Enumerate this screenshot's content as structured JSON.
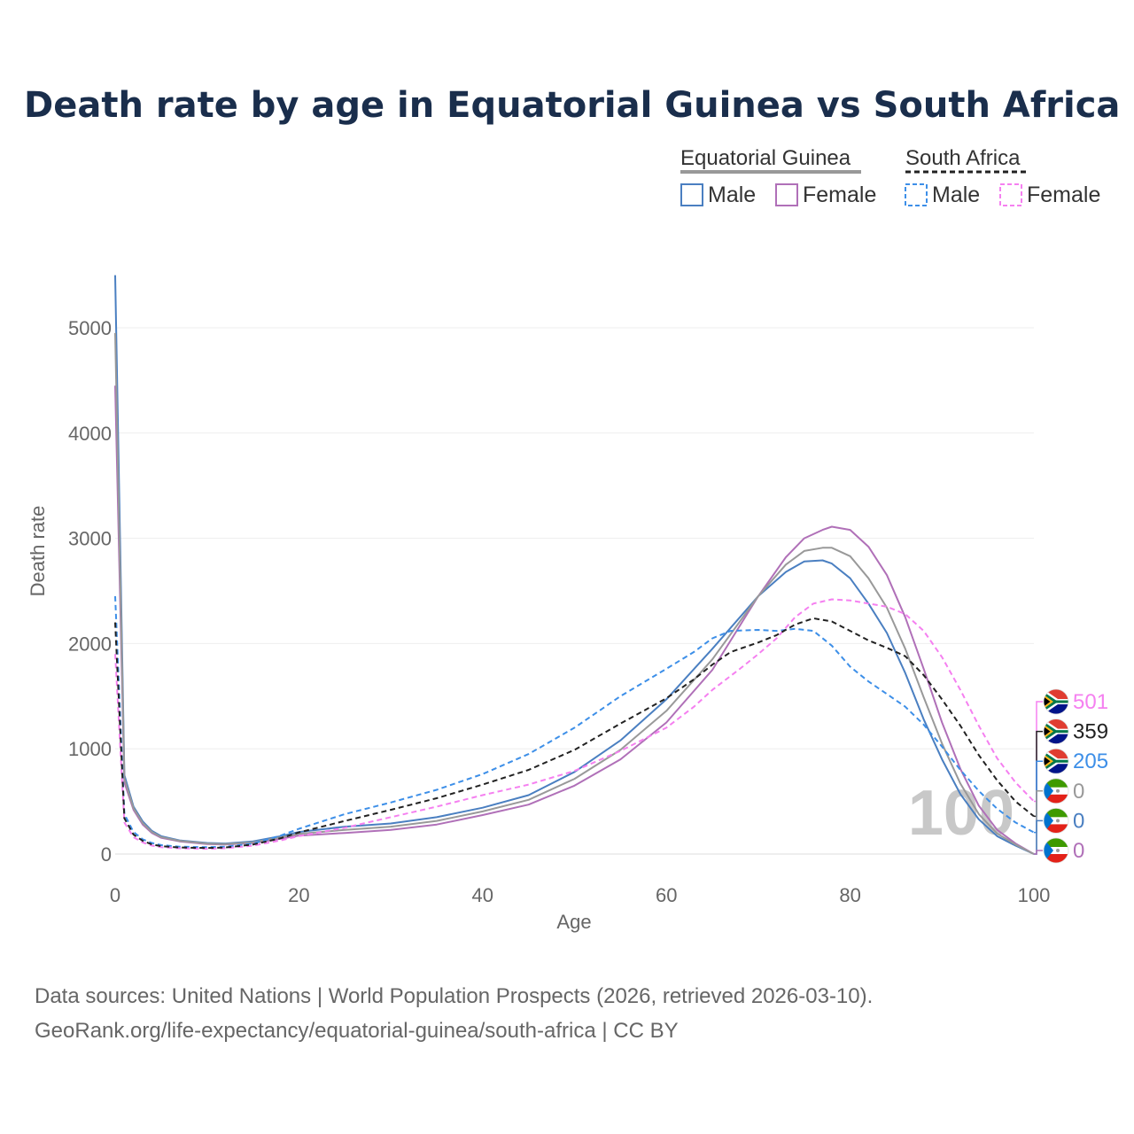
{
  "title": "Death rate by age in Equatorial Guinea vs South Africa",
  "legend": {
    "groups": [
      {
        "name": "Equatorial Guinea",
        "line_color": "#999999",
        "line_style": "solid",
        "items": [
          {
            "label": "Male",
            "color": "#4a7fc1"
          },
          {
            "label": "Female",
            "color": "#b070b8"
          }
        ]
      },
      {
        "name": "South Africa",
        "line_color": "#222222",
        "line_style": "dashed",
        "items": [
          {
            "label": "Male",
            "color": "#3d8fe8"
          },
          {
            "label": "Female",
            "color": "#f580f0"
          }
        ]
      }
    ]
  },
  "age_readout": "100",
  "source_lines": [
    "Data sources: United Nations | World Population Prospects (2026, retrieved 2026-03-10).",
    "GeoRank.org/life-expectancy/equatorial-guinea/south-africa | CC BY"
  ],
  "end_labels": [
    {
      "value": "501",
      "color": "#f580f0",
      "flag": "south-africa"
    },
    {
      "value": "359",
      "color": "#222222",
      "flag": "south-africa"
    },
    {
      "value": "205",
      "color": "#3d8fe8",
      "flag": "south-africa"
    },
    {
      "value": "0",
      "color": "#999999",
      "flag": "equatorial-guinea"
    },
    {
      "value": "0",
      "color": "#4a7fc1",
      "flag": "equatorial-guinea"
    },
    {
      "value": "0",
      "color": "#b070b8",
      "flag": "equatorial-guinea"
    }
  ],
  "chart_data": {
    "type": "line",
    "title": "Death rate by age in Equatorial Guinea vs South Africa",
    "xlabel": "Age",
    "ylabel": "Death rate",
    "xlim": [
      0,
      100
    ],
    "ylim": [
      0,
      5500
    ],
    "xticks": [
      0,
      20,
      40,
      60,
      80,
      100
    ],
    "yticks": [
      0,
      1000,
      2000,
      3000,
      4000,
      5000
    ],
    "grid": true,
    "series": [
      {
        "name": "Equatorial Guinea Male",
        "color": "#4a7fc1",
        "dash": false,
        "points": [
          [
            0,
            5500
          ],
          [
            1,
            750
          ],
          [
            2,
            450
          ],
          [
            3,
            310
          ],
          [
            4,
            220
          ],
          [
            5,
            170
          ],
          [
            7,
            130
          ],
          [
            10,
            105
          ],
          [
            12,
            100
          ],
          [
            15,
            120
          ],
          [
            18,
            170
          ],
          [
            20,
            210
          ],
          [
            25,
            260
          ],
          [
            30,
            290
          ],
          [
            35,
            350
          ],
          [
            40,
            440
          ],
          [
            45,
            560
          ],
          [
            50,
            780
          ],
          [
            55,
            1080
          ],
          [
            60,
            1470
          ],
          [
            65,
            1950
          ],
          [
            70,
            2450
          ],
          [
            73,
            2680
          ],
          [
            75,
            2780
          ],
          [
            77,
            2790
          ],
          [
            78,
            2760
          ],
          [
            80,
            2620
          ],
          [
            82,
            2380
          ],
          [
            84,
            2100
          ],
          [
            86,
            1720
          ],
          [
            88,
            1280
          ],
          [
            90,
            900
          ],
          [
            92,
            570
          ],
          [
            94,
            330
          ],
          [
            96,
            170
          ],
          [
            98,
            80
          ],
          [
            100,
            0
          ]
        ]
      },
      {
        "name": "Equatorial Guinea Female",
        "color": "#b070b8",
        "dash": false,
        "points": [
          [
            0,
            4450
          ],
          [
            1,
            680
          ],
          [
            2,
            420
          ],
          [
            3,
            280
          ],
          [
            4,
            200
          ],
          [
            5,
            155
          ],
          [
            7,
            120
          ],
          [
            10,
            95
          ],
          [
            12,
            90
          ],
          [
            15,
            105
          ],
          [
            18,
            145
          ],
          [
            20,
            175
          ],
          [
            25,
            200
          ],
          [
            30,
            230
          ],
          [
            35,
            280
          ],
          [
            40,
            370
          ],
          [
            45,
            470
          ],
          [
            50,
            650
          ],
          [
            55,
            900
          ],
          [
            60,
            1250
          ],
          [
            65,
            1750
          ],
          [
            70,
            2450
          ],
          [
            73,
            2820
          ],
          [
            75,
            3000
          ],
          [
            77,
            3080
          ],
          [
            78,
            3110
          ],
          [
            80,
            3080
          ],
          [
            82,
            2920
          ],
          [
            84,
            2650
          ],
          [
            86,
            2250
          ],
          [
            88,
            1760
          ],
          [
            90,
            1250
          ],
          [
            92,
            810
          ],
          [
            94,
            460
          ],
          [
            96,
            230
          ],
          [
            98,
            100
          ],
          [
            100,
            0
          ]
        ]
      },
      {
        "name": "Equatorial Guinea Total",
        "color": "#999999",
        "dash": false,
        "points": [
          [
            0,
            4950
          ],
          [
            1,
            715
          ],
          [
            2,
            435
          ],
          [
            3,
            295
          ],
          [
            4,
            210
          ],
          [
            5,
            162
          ],
          [
            7,
            125
          ],
          [
            10,
            100
          ],
          [
            12,
            95
          ],
          [
            15,
            112
          ],
          [
            18,
            158
          ],
          [
            20,
            192
          ],
          [
            25,
            230
          ],
          [
            30,
            260
          ],
          [
            35,
            315
          ],
          [
            40,
            405
          ],
          [
            45,
            515
          ],
          [
            50,
            715
          ],
          [
            55,
            990
          ],
          [
            60,
            1360
          ],
          [
            65,
            1850
          ],
          [
            70,
            2450
          ],
          [
            73,
            2750
          ],
          [
            75,
            2880
          ],
          [
            77,
            2910
          ],
          [
            78,
            2910
          ],
          [
            80,
            2830
          ],
          [
            82,
            2620
          ],
          [
            84,
            2340
          ],
          [
            86,
            1950
          ],
          [
            88,
            1490
          ],
          [
            90,
            1050
          ],
          [
            92,
            670
          ],
          [
            94,
            380
          ],
          [
            96,
            195
          ],
          [
            98,
            90
          ],
          [
            100,
            0
          ]
        ]
      },
      {
        "name": "South Africa Male",
        "color": "#3d8fe8",
        "dash": true,
        "points": [
          [
            0,
            2450
          ],
          [
            1,
            380
          ],
          [
            2,
            210
          ],
          [
            3,
            140
          ],
          [
            4,
            105
          ],
          [
            5,
            85
          ],
          [
            7,
            70
          ],
          [
            10,
            65
          ],
          [
            12,
            70
          ],
          [
            15,
            100
          ],
          [
            18,
            175
          ],
          [
            20,
            240
          ],
          [
            25,
            380
          ],
          [
            30,
            490
          ],
          [
            35,
            610
          ],
          [
            40,
            760
          ],
          [
            45,
            950
          ],
          [
            50,
            1200
          ],
          [
            55,
            1500
          ],
          [
            60,
            1760
          ],
          [
            63,
            1920
          ],
          [
            65,
            2050
          ],
          [
            67,
            2120
          ],
          [
            70,
            2130
          ],
          [
            72,
            2120
          ],
          [
            74,
            2140
          ],
          [
            76,
            2120
          ],
          [
            78,
            1980
          ],
          [
            80,
            1780
          ],
          [
            82,
            1640
          ],
          [
            84,
            1520
          ],
          [
            86,
            1400
          ],
          [
            88,
            1230
          ],
          [
            90,
            1020
          ],
          [
            92,
            800
          ],
          [
            94,
            600
          ],
          [
            96,
            430
          ],
          [
            98,
            300
          ],
          [
            100,
            205
          ]
        ]
      },
      {
        "name": "South Africa Female",
        "color": "#f580f0",
        "dash": true,
        "points": [
          [
            0,
            1900
          ],
          [
            1,
            300
          ],
          [
            2,
            160
          ],
          [
            3,
            110
          ],
          [
            4,
            80
          ],
          [
            5,
            65
          ],
          [
            7,
            55
          ],
          [
            10,
            50
          ],
          [
            12,
            55
          ],
          [
            15,
            80
          ],
          [
            18,
            130
          ],
          [
            20,
            170
          ],
          [
            25,
            250
          ],
          [
            30,
            350
          ],
          [
            35,
            450
          ],
          [
            40,
            560
          ],
          [
            45,
            660
          ],
          [
            50,
            790
          ],
          [
            55,
            980
          ],
          [
            60,
            1200
          ],
          [
            63,
            1400
          ],
          [
            65,
            1560
          ],
          [
            68,
            1760
          ],
          [
            70,
            1900
          ],
          [
            72,
            2050
          ],
          [
            74,
            2250
          ],
          [
            76,
            2380
          ],
          [
            78,
            2420
          ],
          [
            80,
            2410
          ],
          [
            82,
            2380
          ],
          [
            84,
            2350
          ],
          [
            86,
            2280
          ],
          [
            88,
            2120
          ],
          [
            90,
            1870
          ],
          [
            92,
            1560
          ],
          [
            94,
            1220
          ],
          [
            96,
            910
          ],
          [
            98,
            680
          ],
          [
            100,
            501
          ]
        ]
      },
      {
        "name": "South Africa Total",
        "color": "#222222",
        "dash": true,
        "points": [
          [
            0,
            2200
          ],
          [
            1,
            340
          ],
          [
            2,
            185
          ],
          [
            3,
            125
          ],
          [
            4,
            92
          ],
          [
            5,
            75
          ],
          [
            7,
            62
          ],
          [
            10,
            57
          ],
          [
            12,
            62
          ],
          [
            15,
            90
          ],
          [
            18,
            150
          ],
          [
            20,
            205
          ],
          [
            25,
            315
          ],
          [
            30,
            420
          ],
          [
            35,
            530
          ],
          [
            40,
            660
          ],
          [
            45,
            800
          ],
          [
            50,
            990
          ],
          [
            55,
            1240
          ],
          [
            60,
            1480
          ],
          [
            63,
            1660
          ],
          [
            65,
            1800
          ],
          [
            67,
            1920
          ],
          [
            70,
            2010
          ],
          [
            72,
            2080
          ],
          [
            74,
            2180
          ],
          [
            76,
            2240
          ],
          [
            78,
            2210
          ],
          [
            80,
            2120
          ],
          [
            82,
            2030
          ],
          [
            84,
            1960
          ],
          [
            86,
            1880
          ],
          [
            88,
            1700
          ],
          [
            90,
            1470
          ],
          [
            92,
            1220
          ],
          [
            94,
            940
          ],
          [
            96,
            700
          ],
          [
            98,
            500
          ],
          [
            100,
            359
          ]
        ]
      }
    ]
  }
}
